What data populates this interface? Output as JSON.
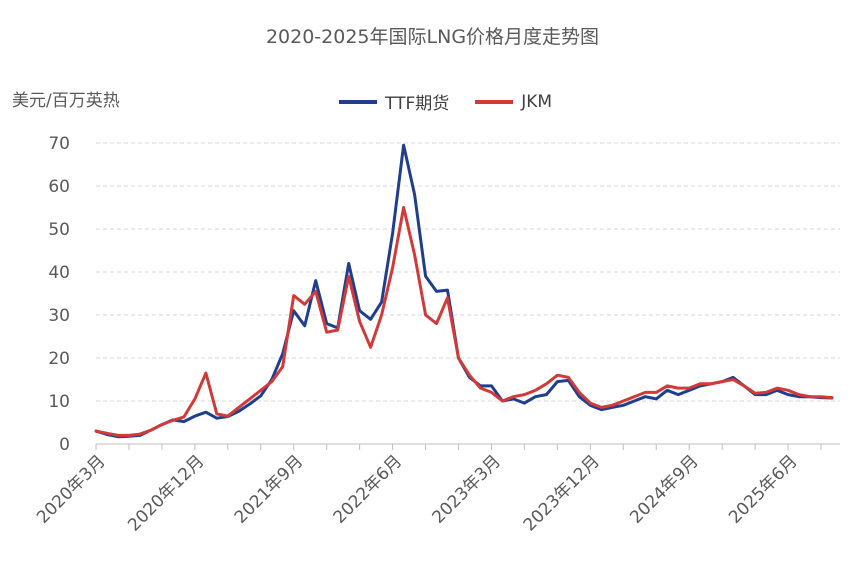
{
  "chart_data": {
    "type": "line",
    "title": "2020-2025年国际LNG价格月度走势图",
    "ylabel": "美元/百万英热",
    "ylim": [
      0,
      70
    ],
    "yticks": [
      "0",
      "10",
      "20",
      "30",
      "40",
      "50",
      "60",
      "70"
    ],
    "xtick_labels": [
      "2020年3月",
      "2020年12月",
      "2021年9月",
      "2022年6月",
      "2023年3月",
      "2023年12月",
      "2024年9月",
      "2025年6月"
    ],
    "x": [
      "2020-03",
      "2020-04",
      "2020-05",
      "2020-06",
      "2020-07",
      "2020-08",
      "2020-09",
      "2020-10",
      "2020-11",
      "2020-12",
      "2021-01",
      "2021-02",
      "2021-03",
      "2021-04",
      "2021-05",
      "2021-06",
      "2021-07",
      "2021-08",
      "2021-09",
      "2021-10",
      "2021-11",
      "2021-12",
      "2022-01",
      "2022-02",
      "2022-03",
      "2022-04",
      "2022-05",
      "2022-06",
      "2022-07",
      "2022-08",
      "2022-09",
      "2022-10",
      "2022-11",
      "2022-12",
      "2023-01",
      "2023-02",
      "2023-03",
      "2023-04",
      "2023-05",
      "2023-06",
      "2023-07",
      "2023-08",
      "2023-09",
      "2023-10",
      "2023-11",
      "2023-12",
      "2024-01",
      "2024-02",
      "2024-03",
      "2024-04",
      "2024-05",
      "2024-06",
      "2024-07",
      "2024-08",
      "2024-09",
      "2024-10",
      "2024-11",
      "2024-12",
      "2025-01",
      "2025-02",
      "2025-03",
      "2025-04",
      "2025-05",
      "2025-06",
      "2025-07",
      "2025-08",
      "2025-09",
      "2025-10"
    ],
    "legend_position": "top",
    "grid": "horizontal dashed",
    "series": [
      {
        "name": "TTF期货",
        "color": "#1f3f8c",
        "values": [
          3.0,
          2.2,
          1.7,
          1.8,
          2.0,
          3.2,
          4.5,
          5.6,
          5.2,
          6.5,
          7.4,
          6.0,
          6.4,
          7.6,
          9.3,
          11.2,
          15.0,
          21.0,
          31.0,
          27.5,
          38.0,
          28.0,
          27.0,
          42.0,
          31.0,
          29.0,
          33.0,
          49.0,
          69.5,
          58.0,
          39.0,
          35.5,
          35.8,
          20.0,
          15.5,
          13.5,
          13.5,
          10.0,
          10.5,
          9.5,
          11.0,
          11.5,
          14.5,
          14.8,
          11.0,
          9.0,
          8.0,
          8.5,
          9.0,
          10.0,
          11.0,
          10.5,
          12.5,
          11.5,
          12.5,
          13.5,
          14.0,
          14.5,
          15.5,
          13.5,
          11.5,
          11.5,
          12.5,
          11.5,
          11.0,
          11.0,
          10.8,
          10.7
        ]
      },
      {
        "name": "JKM",
        "color": "#d23a3a",
        "values": [
          3.0,
          2.5,
          2.0,
          2.0,
          2.3,
          3.2,
          4.5,
          5.5,
          6.3,
          10.5,
          16.5,
          7.0,
          6.5,
          8.5,
          10.5,
          12.5,
          14.5,
          18.0,
          34.5,
          32.5,
          35.5,
          26.0,
          26.5,
          39.0,
          28.5,
          22.5,
          30.0,
          41.0,
          55.0,
          44.0,
          30.0,
          28.0,
          34.0,
          20.0,
          16.0,
          13.0,
          12.0,
          10.0,
          11.0,
          11.5,
          12.5,
          14.0,
          16.0,
          15.5,
          12.0,
          9.5,
          8.5,
          9.0,
          10.0,
          11.0,
          12.0,
          12.0,
          13.5,
          13.0,
          13.0,
          14.0,
          14.0,
          14.5,
          15.0,
          13.5,
          11.8,
          12.0,
          13.0,
          12.5,
          11.5,
          11.0,
          11.0,
          10.8
        ]
      }
    ]
  }
}
